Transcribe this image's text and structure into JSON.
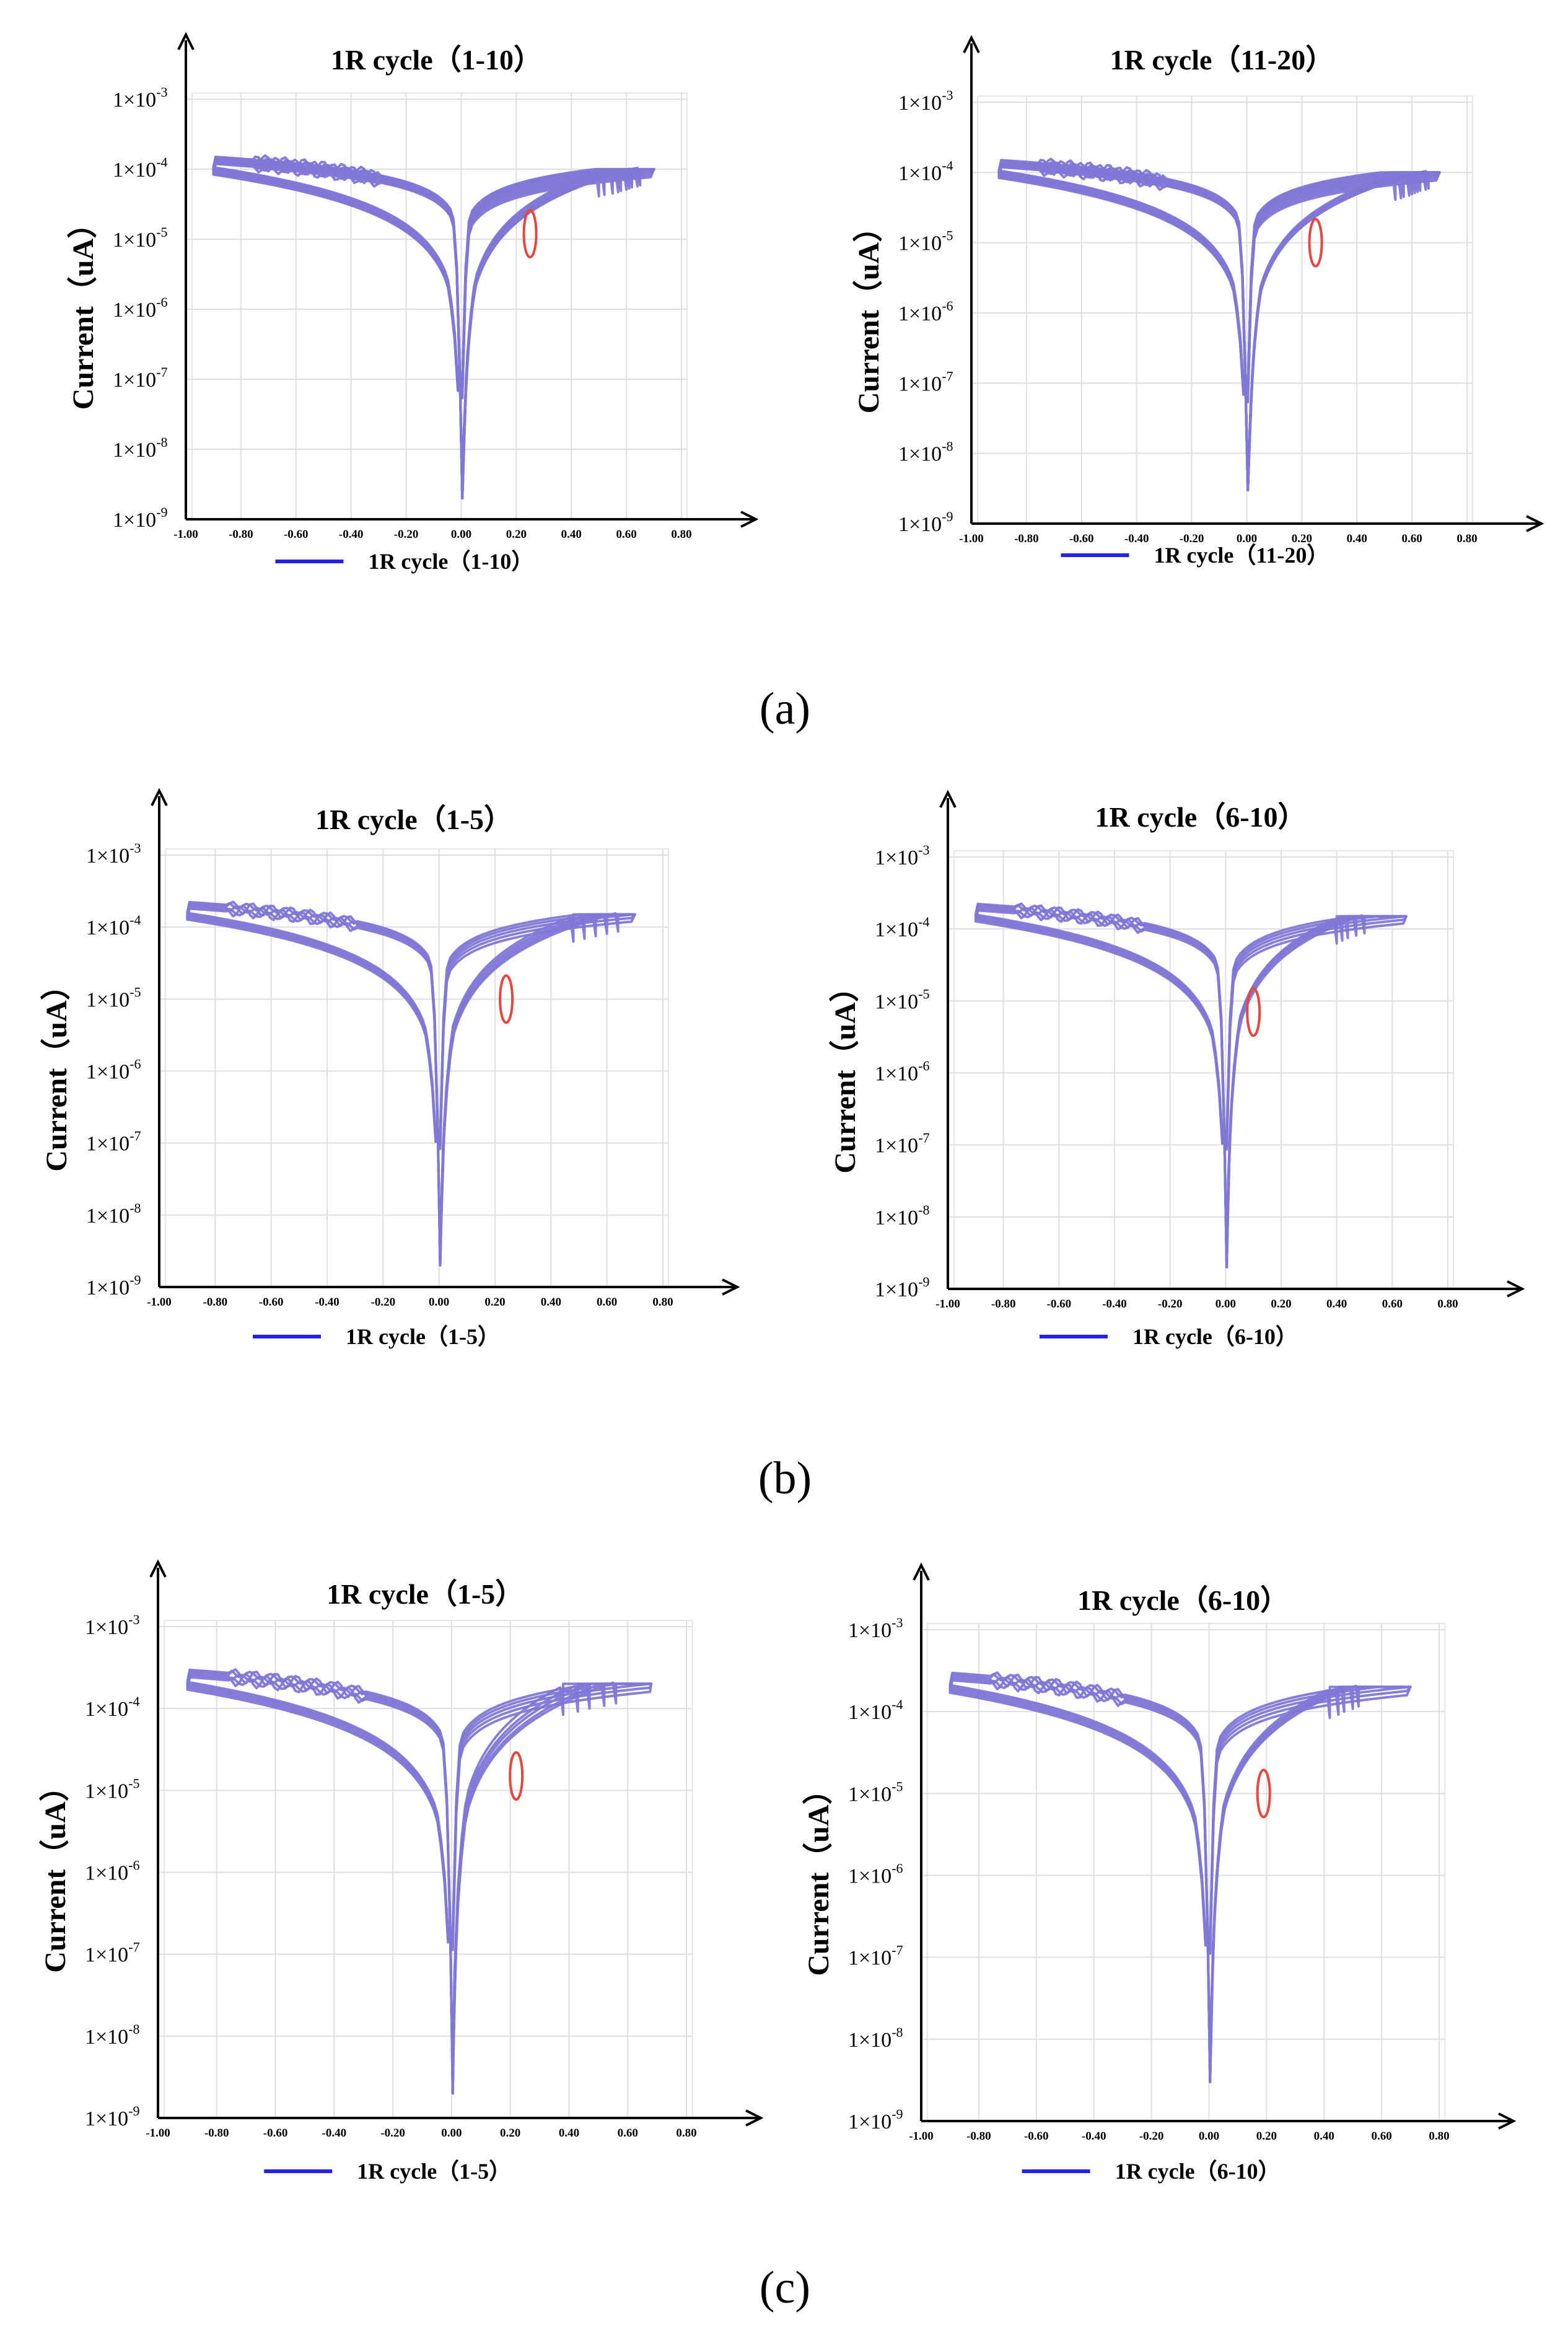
{
  "captions": [
    "(a)",
    "(b)",
    "(c)"
  ],
  "colors": {
    "curve": "#8177d6",
    "legend_line": "#2222ee",
    "marker": "#e8463c",
    "axis": "#000000",
    "grid": "#dedede"
  },
  "chart_data": [
    {
      "type": "line",
      "id": "a-left",
      "group": "(a)",
      "title": "1R cycle（1-10）",
      "ylabel": "Current（uA）",
      "xlabel": "",
      "yscale": "log",
      "ylim": [
        1e-09,
        0.001
      ],
      "xlim": [
        -1.0,
        0.8
      ],
      "xticks": [
        "-1.00",
        "-0.80",
        "-0.60",
        "-0.40",
        "-0.20",
        "0.00",
        "0.20",
        "0.40",
        "0.60",
        "0.80"
      ],
      "yticks": [
        {
          "mant": "1×10",
          "exp": "-9"
        },
        {
          "mant": "1×10",
          "exp": "-8"
        },
        {
          "mant": "1×10",
          "exp": "-7"
        },
        {
          "mant": "1×10",
          "exp": "-6"
        },
        {
          "mant": "1×10",
          "exp": "-5"
        },
        {
          "mant": "1×10",
          "exp": "-4"
        },
        {
          "mant": "1×10",
          "exp": "-3"
        }
      ],
      "legend": {
        "label": "1R cycle（1-10）",
        "position": "bottom-center"
      },
      "compliance": 0.0001,
      "min_current": 2e-09,
      "vmin": -0.9,
      "vmax": 0.7,
      "set_voltages": [
        0.5,
        0.52,
        0.55,
        0.57,
        0.58,
        0.6,
        0.61,
        0.62,
        0.64,
        0.65
      ],
      "marker": {
        "v": 0.25,
        "i": 1.2e-05
      }
    },
    {
      "type": "line",
      "id": "a-right",
      "group": "(a)",
      "title": "1R cycle（11-20）",
      "ylabel": "Current（uA）",
      "xlabel": "",
      "yscale": "log",
      "ylim": [
        1e-09,
        0.001
      ],
      "xlim": [
        -1.0,
        0.8
      ],
      "xticks": [
        "-1.00",
        "-0.80",
        "-0.60",
        "-0.40",
        "-0.20",
        "0.00",
        "0.20",
        "0.40",
        "0.60",
        "0.80"
      ],
      "yticks": [
        {
          "mant": "1×10",
          "exp": "-9"
        },
        {
          "mant": "1×10",
          "exp": "-8"
        },
        {
          "mant": "1×10",
          "exp": "-7"
        },
        {
          "mant": "1×10",
          "exp": "-6"
        },
        {
          "mant": "1×10",
          "exp": "-5"
        },
        {
          "mant": "1×10",
          "exp": "-4"
        },
        {
          "mant": "1×10",
          "exp": "-3"
        }
      ],
      "legend": {
        "label": "1R cycle（11-20）",
        "position": "bottom-center"
      },
      "compliance": 0.0001,
      "min_current": 3e-09,
      "vmin": -0.9,
      "vmax": 0.7,
      "set_voltages": [
        0.54,
        0.56,
        0.57,
        0.59,
        0.6,
        0.61,
        0.62,
        0.63,
        0.65,
        0.66
      ],
      "marker": {
        "v": 0.25,
        "i": 1e-05
      }
    },
    {
      "type": "line",
      "id": "b-left",
      "group": "(b)",
      "title": "1R cycle（1-5）",
      "ylabel": "Current（uA）",
      "xlabel": "",
      "yscale": "log",
      "ylim": [
        1e-09,
        0.001
      ],
      "xlim": [
        -1.0,
        0.8
      ],
      "xticks": [
        "-1.00",
        "-0.80",
        "-0.60",
        "-0.40",
        "-0.20",
        "0.00",
        "0.20",
        "0.40",
        "0.60",
        "0.80"
      ],
      "yticks": [
        {
          "mant": "1×10",
          "exp": "-9"
        },
        {
          "mant": "1×10",
          "exp": "-8"
        },
        {
          "mant": "1×10",
          "exp": "-7"
        },
        {
          "mant": "1×10",
          "exp": "-6"
        },
        {
          "mant": "1×10",
          "exp": "-5"
        },
        {
          "mant": "1×10",
          "exp": "-4"
        },
        {
          "mant": "1×10",
          "exp": "-3"
        }
      ],
      "legend": {
        "label": "1R cycle（1-5）",
        "position": "bottom-center"
      },
      "compliance": 0.00015,
      "min_current": 2e-09,
      "vmin": -0.9,
      "vmax": 0.7,
      "set_voltages": [
        0.48,
        0.52,
        0.56,
        0.6,
        0.64
      ],
      "marker": {
        "v": 0.24,
        "i": 1e-05
      }
    },
    {
      "type": "line",
      "id": "b-right",
      "group": "(b)",
      "title": "1R cycle（6-10）",
      "ylabel": "Current（uA）",
      "xlabel": "",
      "yscale": "log",
      "ylim": [
        1e-09,
        0.001
      ],
      "xlim": [
        -1.0,
        0.8
      ],
      "xticks": [
        "-1.00",
        "-0.80",
        "-0.60",
        "-0.40",
        "-0.20",
        "0.00",
        "0.20",
        "0.40",
        "0.60",
        "0.80"
      ],
      "yticks": [
        {
          "mant": "1×10",
          "exp": "-9"
        },
        {
          "mant": "1×10",
          "exp": "-8"
        },
        {
          "mant": "1×10",
          "exp": "-7"
        },
        {
          "mant": "1×10",
          "exp": "-6"
        },
        {
          "mant": "1×10",
          "exp": "-5"
        },
        {
          "mant": "1×10",
          "exp": "-4"
        },
        {
          "mant": "1×10",
          "exp": "-3"
        }
      ],
      "legend": {
        "label": "1R cycle（6-10）",
        "position": "bottom-center"
      },
      "compliance": 0.00015,
      "min_current": 2e-09,
      "vmin": -0.9,
      "vmax": 0.65,
      "set_voltages": [
        0.4,
        0.42,
        0.44,
        0.47,
        0.5
      ],
      "marker": {
        "v": 0.1,
        "i": 7e-06
      }
    },
    {
      "type": "line",
      "id": "c-left",
      "group": "(c)",
      "title": "1R cycle（1-5）",
      "ylabel": "Current（uA）",
      "xlabel": "",
      "yscale": "log",
      "ylim": [
        1e-09,
        0.001
      ],
      "xlim": [
        -1.0,
        0.8
      ],
      "xticks": [
        "-1.00",
        "-0.80",
        "-0.60",
        "-0.40",
        "-0.20",
        "0.00",
        "0.20",
        "0.40",
        "0.60",
        "0.80"
      ],
      "yticks": [
        {
          "mant": "1×10",
          "exp": "-9"
        },
        {
          "mant": "1×10",
          "exp": "-8"
        },
        {
          "mant": "1×10",
          "exp": "-7"
        },
        {
          "mant": "1×10",
          "exp": "-6"
        },
        {
          "mant": "1×10",
          "exp": "-5"
        },
        {
          "mant": "1×10",
          "exp": "-4"
        },
        {
          "mant": "1×10",
          "exp": "-3"
        }
      ],
      "legend": {
        "label": "1R cycle（1-5）",
        "position": "bottom-center"
      },
      "compliance": 0.0002,
      "min_current": 2e-09,
      "vmin": -0.9,
      "vmax": 0.68,
      "set_voltages": [
        0.38,
        0.43,
        0.47,
        0.52,
        0.56
      ],
      "marker": {
        "v": 0.22,
        "i": 1.5e-05
      }
    },
    {
      "type": "line",
      "id": "c-right",
      "group": "(c)",
      "title": "1R cycle（6-10）",
      "ylabel": "Current（uA）",
      "xlabel": "",
      "yscale": "log",
      "ylim": [
        1e-09,
        0.001
      ],
      "xlim": [
        -1.0,
        0.8
      ],
      "xticks": [
        "-1.00",
        "-0.80",
        "-0.60",
        "-0.40",
        "-0.20",
        "0.00",
        "0.20",
        "0.40",
        "0.60",
        "0.80"
      ],
      "yticks": [
        {
          "mant": "1×10",
          "exp": "-9"
        },
        {
          "mant": "1×10",
          "exp": "-8"
        },
        {
          "mant": "1×10",
          "exp": "-7"
        },
        {
          "mant": "1×10",
          "exp": "-6"
        },
        {
          "mant": "1×10",
          "exp": "-5"
        },
        {
          "mant": "1×10",
          "exp": "-4"
        },
        {
          "mant": "1×10",
          "exp": "-3"
        }
      ],
      "legend": {
        "label": "1R cycle（6-10）",
        "position": "bottom-center"
      },
      "compliance": 0.0002,
      "min_current": 3e-09,
      "vmin": -0.9,
      "vmax": 0.7,
      "set_voltages": [
        0.42,
        0.45,
        0.47,
        0.5,
        0.52
      ],
      "marker": {
        "v": 0.19,
        "i": 1e-05
      }
    }
  ]
}
